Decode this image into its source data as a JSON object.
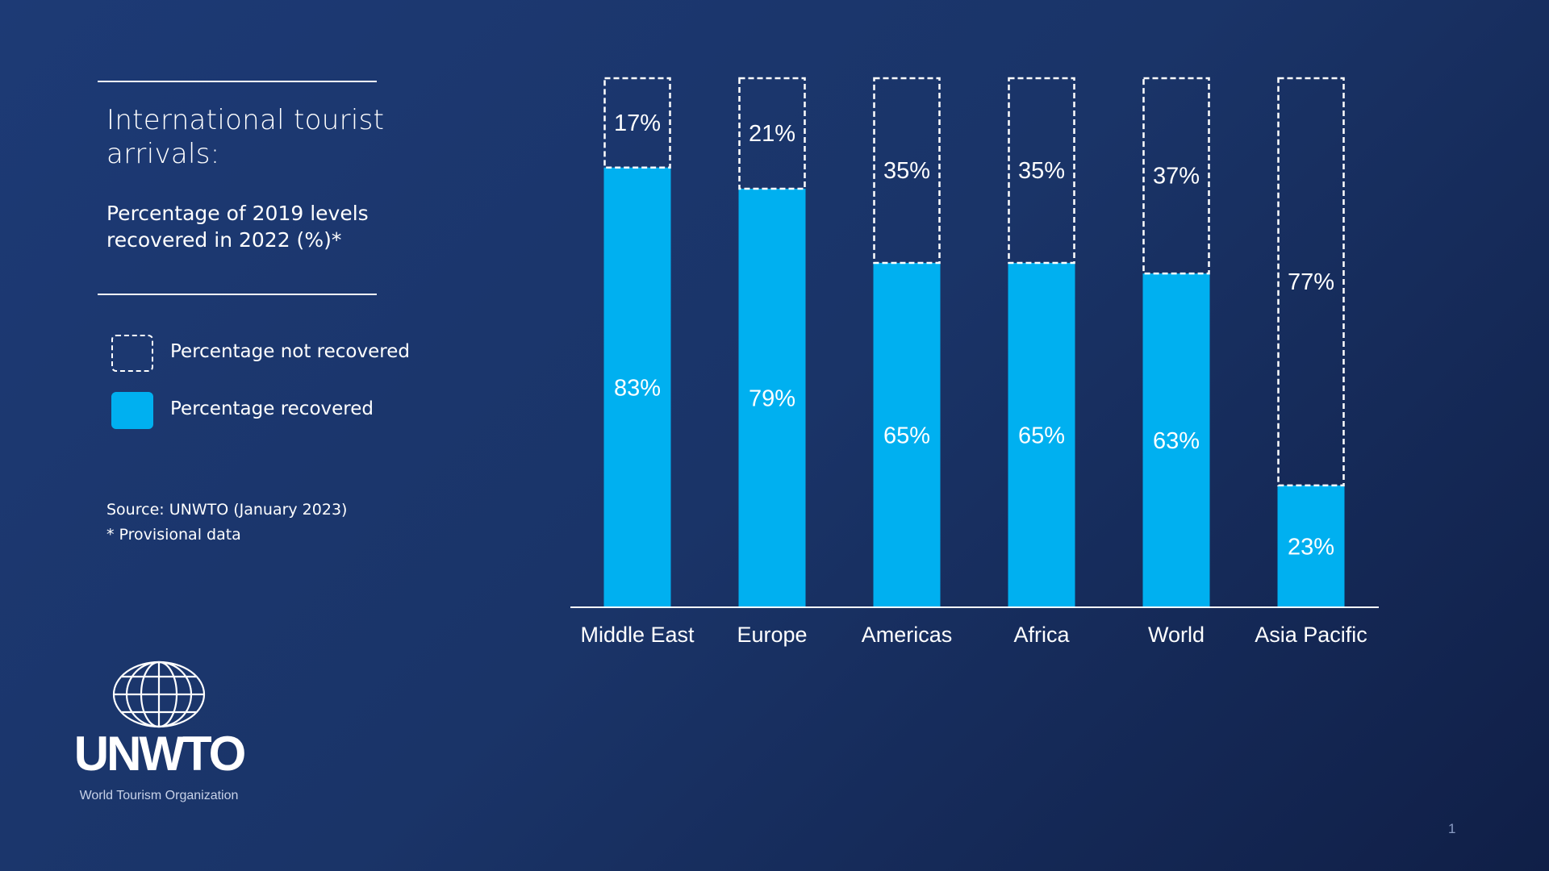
{
  "panel": {
    "title": "International tourist arrivals:",
    "subtitle": "Percentage of 2019 levels recovered in 2022 (%)*",
    "legend": [
      {
        "label": "Percentage not recovered",
        "style": "dashed"
      },
      {
        "label": "Percentage recovered",
        "color": "#00b0f0"
      }
    ],
    "source": "Source: UNWTO (January 2023)",
    "note": "* Provisional data"
  },
  "logo": {
    "name": "UNWTO",
    "tagline": "World Tourism Organization"
  },
  "page_number": "1",
  "colors": {
    "recovered": "#00b0f0",
    "background": "#1c3870",
    "outline": "#ffffff"
  },
  "chart_data": {
    "type": "bar",
    "stacked": true,
    "categories": [
      "Middle East",
      "Europe",
      "Americas",
      "Africa",
      "World",
      "Asia Pacific"
    ],
    "series": [
      {
        "name": "Percentage recovered",
        "values": [
          83,
          79,
          65,
          65,
          63,
          23
        ],
        "labels": [
          "83%",
          "79%",
          "65%",
          "65%",
          "63%",
          "23%"
        ]
      },
      {
        "name": "Percentage not recovered",
        "values": [
          17,
          21,
          35,
          35,
          37,
          77
        ],
        "labels": [
          "17%",
          "21%",
          "35%",
          "35%",
          "37%",
          "77%"
        ]
      }
    ],
    "ylim": [
      0,
      100
    ],
    "grid": false,
    "legend": "left"
  }
}
